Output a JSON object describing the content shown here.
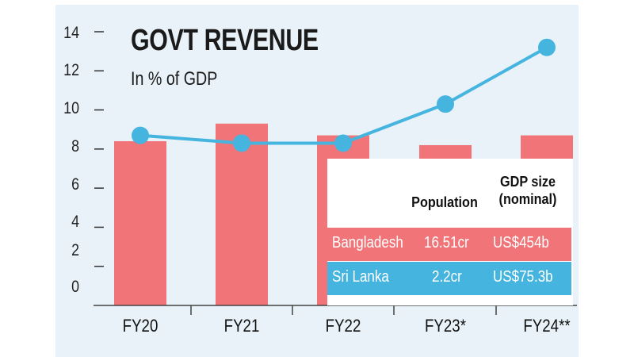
{
  "chart_data": {
    "type": "bar+line",
    "title": "GOVT REVENUE",
    "subtitle": "In % of GDP",
    "categories": [
      "FY20",
      "FY21",
      "FY22",
      "FY23*",
      "FY24**"
    ],
    "y_ticks": [
      "14",
      "12",
      "10",
      "8",
      "6",
      "4",
      "2",
      "0"
    ],
    "ylim": [
      0,
      14
    ],
    "series": [
      {
        "name": "Bangladesh",
        "type": "bar",
        "color": "#f07478",
        "values": [
          8.4,
          9.3,
          8.7,
          8.2,
          8.7
        ]
      },
      {
        "name": "Sri Lanka",
        "type": "line",
        "color": "#45b5e0",
        "values": [
          8.7,
          8.3,
          8.3,
          10.3,
          13.2
        ]
      }
    ],
    "table": {
      "headers": [
        "Population",
        "GDP size (nominal)"
      ],
      "rows": [
        {
          "country": "Bangladesh",
          "population": "16.51cr",
          "gdp": "US$454b",
          "color": "#f07478"
        },
        {
          "country": "Sri Lanka",
          "population": "2.2cr",
          "gdp": "US$75.3b",
          "color": "#45b5e0"
        }
      ]
    }
  }
}
